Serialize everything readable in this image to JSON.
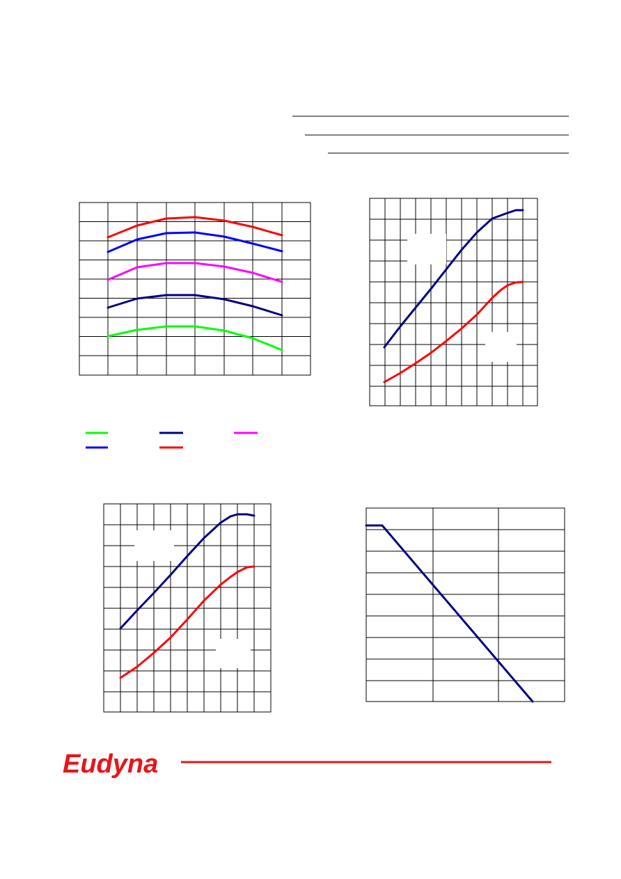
{
  "logo": {
    "text": "Eudyna"
  }
}
